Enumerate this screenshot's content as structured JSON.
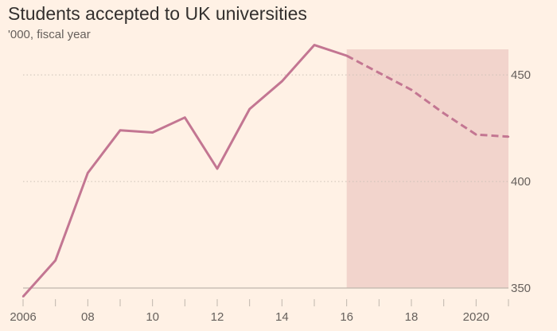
{
  "title": "Students accepted to UK universities",
  "subtitle": "'000, fiscal year",
  "colors": {
    "background": "#FFF1E5",
    "line": "#C37692",
    "forecast_shade": "#F2D4CC",
    "gridline": "#CCC1B7",
    "axis": "#BFB6AD",
    "text": "#66605C"
  },
  "chart_data": {
    "type": "line",
    "title": "Students accepted to UK universities",
    "subtitle": "'000, fiscal year",
    "xlabel": "",
    "ylabel": "",
    "xlim": [
      2006,
      2021
    ],
    "ylim": [
      350,
      462
    ],
    "x_ticks": [
      {
        "value": 2006,
        "label": "2006"
      },
      {
        "value": 2008,
        "label": "08"
      },
      {
        "value": 2010,
        "label": "10"
      },
      {
        "value": 2012,
        "label": "12"
      },
      {
        "value": 2014,
        "label": "14"
      },
      {
        "value": 2016,
        "label": "16"
      },
      {
        "value": 2018,
        "label": "18"
      },
      {
        "value": 2020,
        "label": "2020"
      }
    ],
    "y_ticks": [
      {
        "value": 350,
        "label": "350"
      },
      {
        "value": 400,
        "label": "400"
      },
      {
        "value": 450,
        "label": "450"
      }
    ],
    "gridlines": true,
    "y_axis_position": "right",
    "forecast_region": [
      2016,
      2021
    ],
    "series": [
      {
        "style": "solid",
        "x": [
          2006,
          2007,
          2008,
          2009,
          2010,
          2011,
          2012,
          2013,
          2014,
          2015,
          2016
        ],
        "values": [
          346,
          363,
          404,
          424,
          423,
          430,
          406,
          434,
          447,
          464,
          459
        ]
      },
      {
        "style": "dashed",
        "x": [
          2016,
          2017,
          2018,
          2019,
          2020,
          2021
        ],
        "values": [
          459,
          451,
          443,
          432,
          422,
          421
        ]
      }
    ]
  }
}
